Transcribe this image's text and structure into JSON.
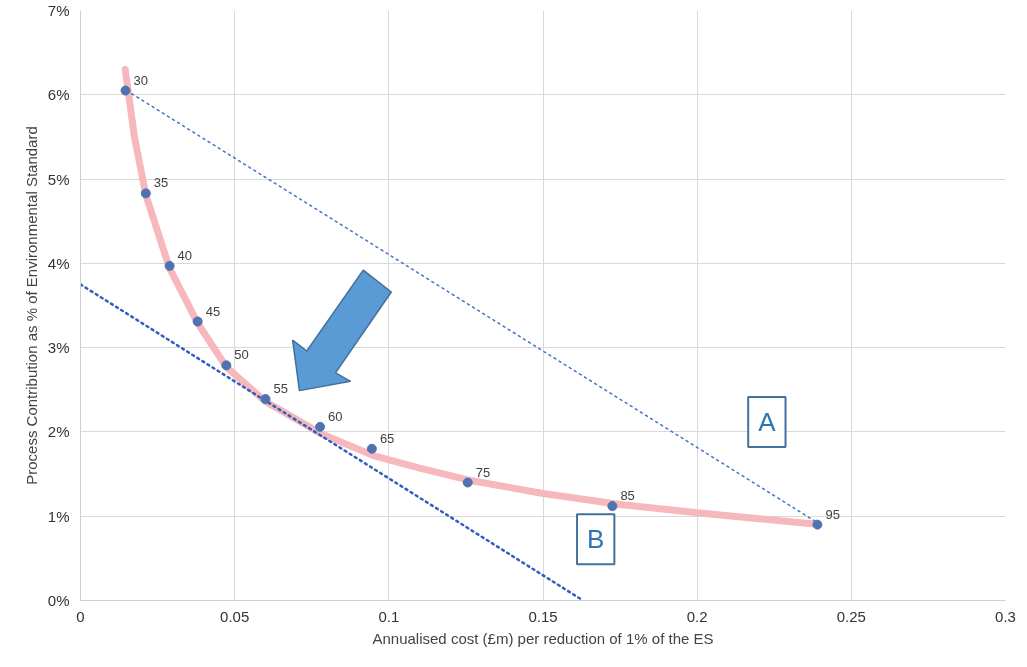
{
  "chart_data": {
    "type": "scatter",
    "xlabel": "Annualised cost (£m) per reduction of 1% of the ES",
    "ylabel": "Process Contribution as % of Environmental Standard",
    "xlim": [
      0,
      0.3
    ],
    "xticks": [
      0,
      0.05,
      0.1,
      0.15,
      0.2,
      0.25,
      0.3
    ],
    "ylim": [
      0,
      7
    ],
    "yticks": [
      {
        "value": 0,
        "label": "0%"
      },
      {
        "value": 1,
        "label": "1%"
      },
      {
        "value": 2,
        "label": "2%"
      },
      {
        "value": 3,
        "label": "3%"
      },
      {
        "value": 4,
        "label": "4%"
      },
      {
        "value": 5,
        "label": "5%"
      },
      {
        "value": 6,
        "label": "6%"
      },
      {
        "value": 7,
        "label": "7%"
      }
    ],
    "grid": true,
    "legend": false,
    "series": [
      {
        "type": "line",
        "color": "#f7b8bd",
        "line_style": "solid",
        "marker": "none",
        "x": [
          0.0145,
          0.0175,
          0.0212,
          0.0289,
          0.038,
          0.0473,
          0.06,
          0.078,
          0.095,
          0.11,
          0.1256,
          0.15,
          0.175,
          0.2,
          0.22,
          0.237
        ],
        "values": [
          6.3,
          5.5,
          4.81,
          3.94,
          3.29,
          2.77,
          2.36,
          1.98,
          1.72,
          1.57,
          1.43,
          1.27,
          1.14,
          1.04,
          0.97,
          0.91
        ]
      },
      {
        "type": "line",
        "name": "A",
        "color": "#4472c4",
        "line_style": "dotted",
        "marker": "none",
        "x": [
          0.015,
          0.24
        ],
        "values": [
          6.05,
          0.9
        ]
      },
      {
        "type": "line",
        "name": "B",
        "color": "#2f5fbf",
        "line_style": "dotted",
        "marker": "none",
        "x": [
          0,
          0.163
        ],
        "values": [
          3.75,
          0
        ]
      },
      {
        "color": "#4f72b0",
        "marker": "circle",
        "x": [
          0.0146,
          0.0212,
          0.0289,
          0.038,
          0.0473,
          0.06,
          0.0777,
          0.0945,
          0.1256,
          0.1725,
          0.239
        ],
        "values": [
          6.05,
          4.83,
          3.97,
          3.31,
          2.79,
          2.39,
          2.06,
          1.8,
          1.4,
          1.12,
          0.9
        ]
      }
    ],
    "annotations": [
      {
        "text": "30",
        "x": 0.0146,
        "y": 6.05
      },
      {
        "text": "35",
        "x": 0.0212,
        "y": 4.83
      },
      {
        "text": "40",
        "x": 0.0289,
        "y": 3.97
      },
      {
        "text": "45",
        "x": 0.038,
        "y": 3.31
      },
      {
        "text": "50",
        "x": 0.0473,
        "y": 2.79
      },
      {
        "text": "55",
        "x": 0.06,
        "y": 2.39
      },
      {
        "text": "60",
        "x": 0.0777,
        "y": 2.06
      },
      {
        "text": "65",
        "x": 0.0945,
        "y": 1.8
      },
      {
        "text": "75",
        "x": 0.1256,
        "y": 1.4
      },
      {
        "text": "85",
        "x": 0.1725,
        "y": 1.12
      },
      {
        "text": "95",
        "x": 0.239,
        "y": 0.9
      }
    ]
  }
}
